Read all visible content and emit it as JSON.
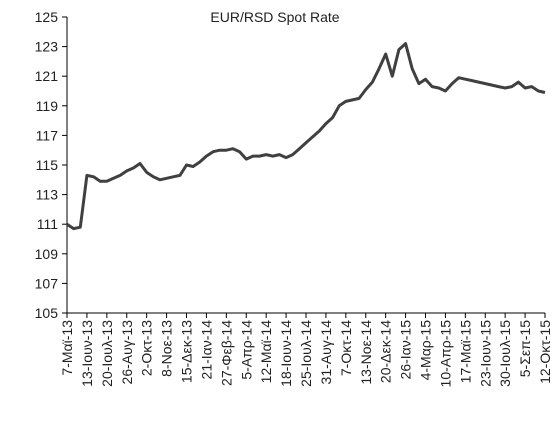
{
  "chart_data": {
    "type": "line",
    "title": "EUR/RSD Spot Rate",
    "categories": [
      "7-Μαϊ-13",
      null,
      null,
      "13-Ιουν-13",
      null,
      null,
      "20-Ιουλ-13",
      null,
      null,
      "26-Αυγ-13",
      null,
      null,
      "2-Οκτ-13",
      null,
      null,
      "8-Νοε-13",
      null,
      null,
      "15-Δεκ-13",
      null,
      null,
      "21-Ιαν-14",
      null,
      null,
      "27-Φεβ-14",
      null,
      null,
      "5-Απρ-14",
      null,
      null,
      "12-Μαϊ-14",
      null,
      null,
      "18-Ιουν-14",
      null,
      null,
      "25-Ιουλ-14",
      null,
      null,
      "31-Αυγ-14",
      null,
      null,
      "7-Οκτ-14",
      null,
      null,
      "13-Νοε-14",
      null,
      null,
      "20-Δεκ-14",
      null,
      null,
      "26-Ιαν-15",
      null,
      null,
      "4-Μαρ-15",
      null,
      null,
      "10-Απρ-15",
      null,
      null,
      "17-Μαϊ-15",
      null,
      null,
      "23-Ιουν-15",
      null,
      null,
      "30-Ιουλ-15",
      null,
      null,
      "5-Σεπ-15",
      null,
      null,
      "12-Οκτ-15"
    ],
    "series": [
      {
        "name": "EUR/RSD",
        "color": "#404040",
        "values": [
          111.0,
          110.7,
          110.8,
          114.3,
          114.2,
          113.9,
          113.9,
          114.1,
          114.3,
          114.6,
          114.8,
          115.1,
          114.5,
          114.2,
          114.0,
          114.1,
          114.2,
          114.3,
          115.0,
          114.9,
          115.2,
          115.6,
          115.9,
          116.0,
          116.0,
          116.1,
          115.9,
          115.4,
          115.6,
          115.6,
          115.7,
          115.6,
          115.7,
          115.5,
          115.7,
          116.1,
          116.5,
          116.9,
          117.3,
          117.8,
          118.2,
          119.0,
          119.3,
          119.4,
          119.5,
          120.1,
          120.6,
          121.5,
          122.5,
          121.0,
          122.8,
          123.2,
          121.5,
          120.5,
          120.8,
          120.3,
          120.2,
          120.0,
          120.5,
          120.9,
          120.8,
          120.7,
          120.6,
          120.5,
          120.4,
          120.3,
          120.2,
          120.3,
          120.6,
          120.2,
          120.3,
          120.0,
          119.9
        ]
      }
    ],
    "ylim": [
      105,
      125
    ],
    "yticks": [
      105,
      107,
      109,
      111,
      113,
      115,
      117,
      119,
      121,
      123,
      125
    ]
  }
}
